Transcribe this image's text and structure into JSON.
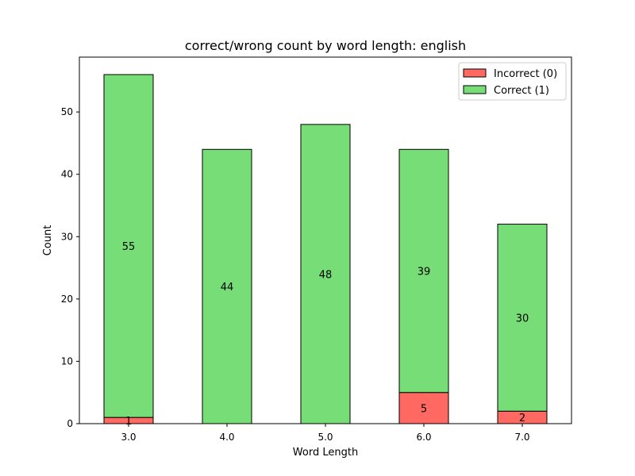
{
  "chart_data": {
    "type": "bar",
    "stacked": true,
    "title": "correct/wrong count by word length: english",
    "xlabel": "Word Length",
    "ylabel": "Count",
    "categories": [
      "3.0",
      "4.0",
      "5.0",
      "6.0",
      "7.0"
    ],
    "ylim": [
      0,
      58.8
    ],
    "yticks": [
      0,
      10,
      20,
      30,
      40,
      50
    ],
    "series": [
      {
        "name": "Incorrect (0)",
        "color": "#ff6961",
        "values": [
          1,
          0,
          0,
          5,
          2
        ]
      },
      {
        "name": "Correct (1)",
        "color": "#77dd77",
        "values": [
          55,
          44,
          48,
          39,
          30
        ]
      }
    ],
    "legend_position": "top-right"
  }
}
